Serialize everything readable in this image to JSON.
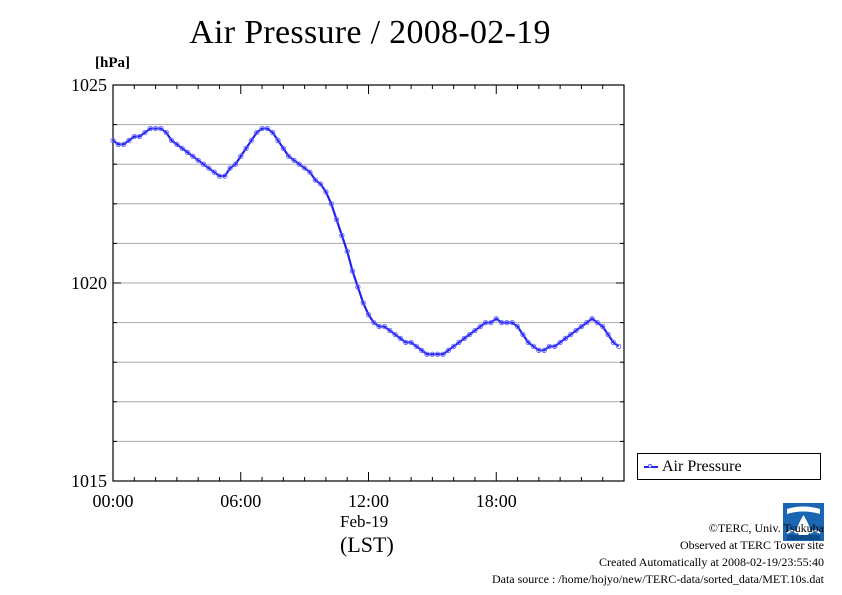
{
  "title": "Air Pressure / 2008-02-19",
  "unit": "[hPa]",
  "x_date_label": "Feb-19",
  "x_tz_label": "(LST)",
  "legend": {
    "label": "Air Pressure"
  },
  "credits": [
    "©TERC, Univ. Tsukuba",
    "Observed at TERC Tower site",
    "Created Automatically at 2008-02-19/23:55:40",
    "Data source : /home/hojyo/new/TERC-data/sorted_data/MET.10s.dat"
  ],
  "colors": {
    "series": "#2222ee",
    "marker": "#6666ff",
    "grid": "#aaaaaa"
  },
  "chart_data": {
    "type": "line",
    "ylim": [
      1015,
      1025
    ],
    "y_ticks": [
      1015,
      1020,
      1025
    ],
    "y_minor_step": 1,
    "xlim": [
      0,
      24
    ],
    "x_ticks": [
      0,
      6,
      12,
      18
    ],
    "x_tick_labels": [
      "00:00",
      "06:00",
      "12:00",
      "18:00"
    ],
    "grid": true,
    "legend_position": "right-bottom",
    "series": [
      {
        "name": "Air Pressure",
        "x": [
          0,
          0.25,
          0.5,
          0.75,
          1,
          1.25,
          1.5,
          1.75,
          2,
          2.25,
          2.5,
          2.75,
          3,
          3.25,
          3.5,
          3.75,
          4,
          4.25,
          4.5,
          4.75,
          5,
          5.25,
          5.5,
          5.75,
          6,
          6.25,
          6.5,
          6.75,
          7,
          7.25,
          7.5,
          7.75,
          8,
          8.25,
          8.5,
          8.75,
          9,
          9.25,
          9.5,
          9.75,
          10,
          10.25,
          10.5,
          10.75,
          11,
          11.25,
          11.5,
          11.75,
          12,
          12.25,
          12.5,
          12.75,
          13,
          13.25,
          13.5,
          13.75,
          14,
          14.25,
          14.5,
          14.75,
          15,
          15.25,
          15.5,
          15.75,
          16,
          16.25,
          16.5,
          16.75,
          17,
          17.25,
          17.5,
          17.75,
          18,
          18.25,
          18.5,
          18.75,
          19,
          19.25,
          19.5,
          19.75,
          20,
          20.25,
          20.5,
          20.75,
          21,
          21.25,
          21.5,
          21.75,
          22,
          22.25,
          22.5,
          22.75,
          23,
          23.25,
          23.5,
          23.75
        ],
        "values": [
          1023.6,
          1023.5,
          1023.5,
          1023.6,
          1023.7,
          1023.7,
          1023.8,
          1023.9,
          1023.9,
          1023.9,
          1023.8,
          1023.6,
          1023.5,
          1023.4,
          1023.3,
          1023.2,
          1023.1,
          1023.0,
          1022.9,
          1022.8,
          1022.7,
          1022.7,
          1022.9,
          1023.0,
          1023.2,
          1023.4,
          1023.6,
          1023.8,
          1023.9,
          1023.9,
          1023.8,
          1023.6,
          1023.4,
          1023.2,
          1023.1,
          1023.0,
          1022.9,
          1022.8,
          1022.6,
          1022.5,
          1022.3,
          1022.0,
          1021.6,
          1021.2,
          1020.8,
          1020.3,
          1019.9,
          1019.5,
          1019.2,
          1019.0,
          1018.9,
          1018.9,
          1018.8,
          1018.7,
          1018.6,
          1018.5,
          1018.5,
          1018.4,
          1018.3,
          1018.2,
          1018.2,
          1018.2,
          1018.2,
          1018.3,
          1018.4,
          1018.5,
          1018.6,
          1018.7,
          1018.8,
          1018.9,
          1019.0,
          1019.0,
          1019.1,
          1019.0,
          1019.0,
          1019.0,
          1018.9,
          1018.7,
          1018.5,
          1018.4,
          1018.3,
          1018.3,
          1018.4,
          1018.4,
          1018.5,
          1018.6,
          1018.7,
          1018.8,
          1018.9,
          1019.0,
          1019.1,
          1019.0,
          1018.9,
          1018.7,
          1018.5,
          1018.4
        ]
      }
    ]
  }
}
